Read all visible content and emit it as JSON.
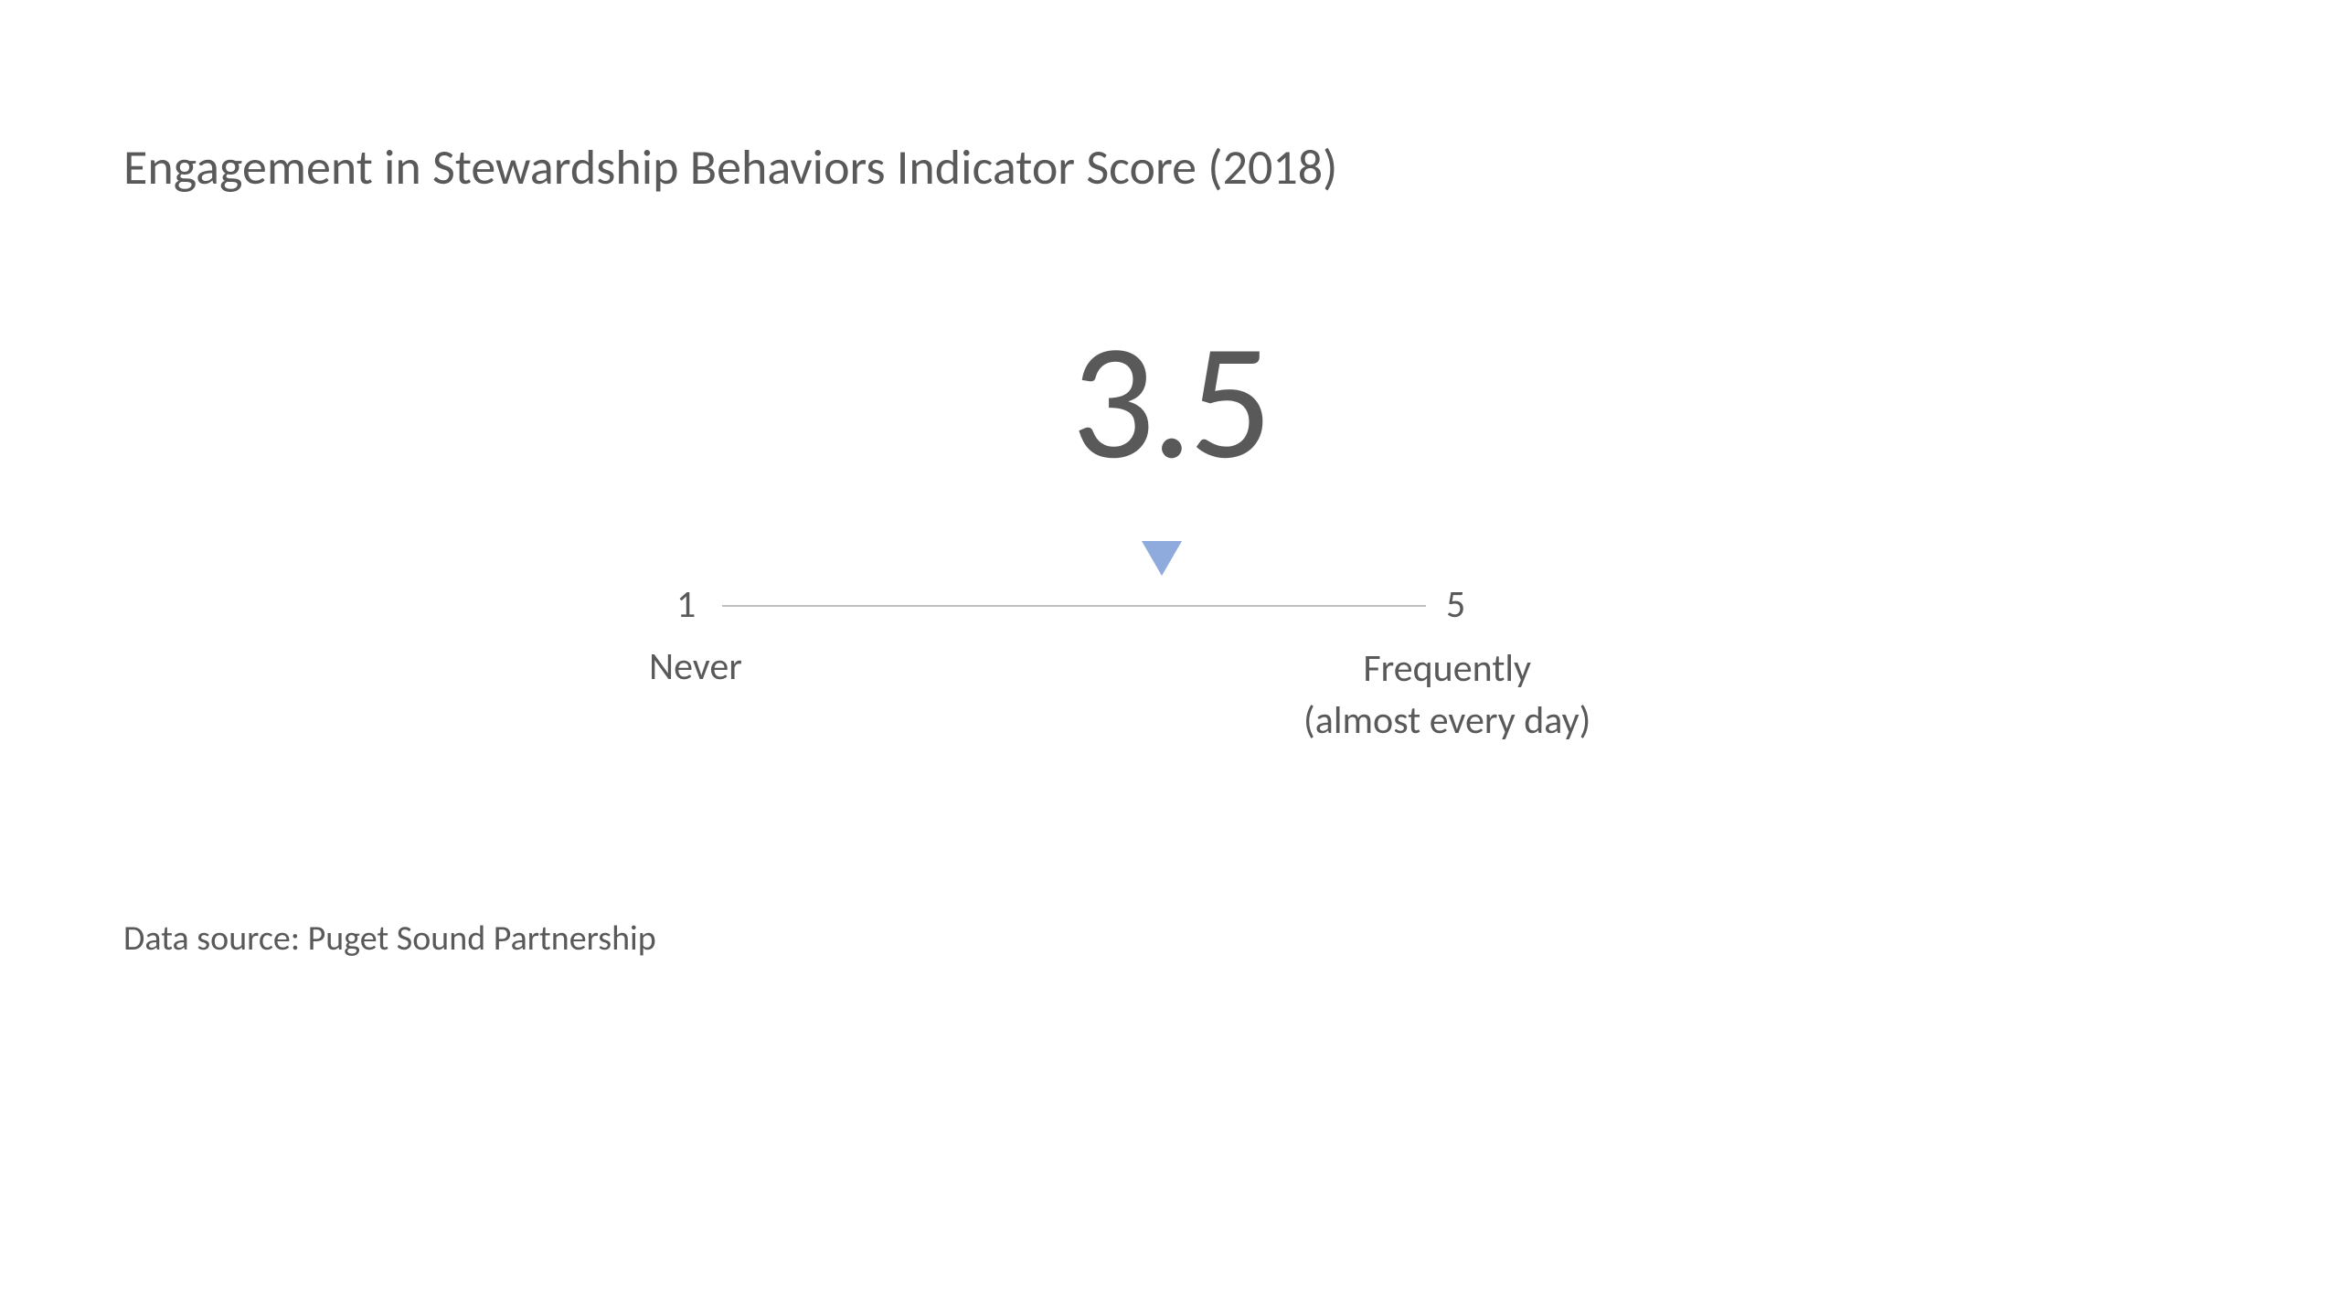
{
  "title": "Engagement in Stewardship Behaviors Indicator Score (2018)",
  "gauge": {
    "type": "scale-indicator",
    "score_value": "3.5",
    "score_numeric": 3.5,
    "scale_min": 1,
    "scale_max": 5,
    "scale_min_label": "1",
    "scale_max_label": "5",
    "min_description": "Never",
    "max_description_line1": "Frequently",
    "max_description_line2": "(almost every day)",
    "marker_color": "#8faadc",
    "line_color": "#bfbfbf",
    "text_color": "#595959",
    "background_color": "#ffffff",
    "score_fontsize": 180,
    "label_fontsize": 42,
    "title_fontsize": 54,
    "marker_position_percent": 62.5
  },
  "data_source": "Data source: Puget Sound Partnership"
}
